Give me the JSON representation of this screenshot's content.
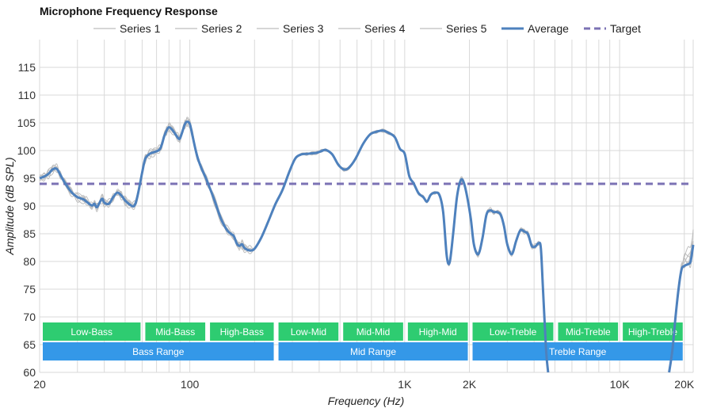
{
  "chart_data": {
    "type": "line",
    "title": "Microphone Frequency Response",
    "xlabel": "Frequency (Hz)",
    "ylabel": "Amplitude (dB SPL)",
    "x_scale": "log",
    "xlim": [
      20,
      22000
    ],
    "ylim": [
      60,
      120
    ],
    "y_ticks": [
      60,
      65,
      70,
      75,
      80,
      85,
      90,
      95,
      100,
      105,
      110,
      115
    ],
    "x_tick_labels": [
      {
        "value": 20,
        "label": "20"
      },
      {
        "value": 100,
        "label": "100"
      },
      {
        "value": 1000,
        "label": "1K"
      },
      {
        "value": 2000,
        "label": "2K"
      },
      {
        "value": 10000,
        "label": "10K"
      },
      {
        "value": 20000,
        "label": "20K"
      }
    ],
    "x_minor_grid": [
      30,
      40,
      50,
      60,
      70,
      80,
      90,
      200,
      300,
      400,
      500,
      600,
      700,
      800,
      900,
      3000,
      4000,
      5000,
      6000,
      7000,
      8000,
      9000
    ],
    "legend": [
      {
        "name": "Series 1",
        "color": "#c8c8c8",
        "style": "solid"
      },
      {
        "name": "Series 2",
        "color": "#c8c8c8",
        "style": "solid"
      },
      {
        "name": "Series 3",
        "color": "#c8c8c8",
        "style": "solid"
      },
      {
        "name": "Series 4",
        "color": "#c8c8c8",
        "style": "solid"
      },
      {
        "name": "Series 5",
        "color": "#c8c8c8",
        "style": "solid"
      },
      {
        "name": "Average",
        "color": "#4e81bd",
        "style": "solid"
      },
      {
        "name": "Target",
        "color": "#7b72b4",
        "style": "dashed"
      }
    ],
    "target": {
      "name": "Target",
      "value": 94
    },
    "average": {
      "name": "Average",
      "points": [
        [
          20,
          95
        ],
        [
          21,
          95.3
        ],
        [
          22,
          95.8
        ],
        [
          23,
          96.6
        ],
        [
          24,
          96.7
        ],
        [
          25,
          95.6
        ],
        [
          26,
          94.4
        ],
        [
          28,
          92.6
        ],
        [
          30,
          91.6
        ],
        [
          32,
          91.2
        ],
        [
          33,
          90.8
        ],
        [
          35,
          90.1
        ],
        [
          36,
          90.4
        ],
        [
          37,
          89.8
        ],
        [
          39,
          91.3
        ],
        [
          40,
          90.6
        ],
        [
          42,
          90.4
        ],
        [
          44,
          91.6
        ],
        [
          46,
          92.4
        ],
        [
          48,
          91.9
        ],
        [
          50,
          91.0
        ],
        [
          52,
          90.4
        ],
        [
          55,
          90.0
        ],
        [
          57,
          91.7
        ],
        [
          60,
          96.0
        ],
        [
          62,
          98.5
        ],
        [
          65,
          99.4
        ],
        [
          68,
          99.7
        ],
        [
          72,
          100.1
        ],
        [
          74,
          101.0
        ],
        [
          76,
          102.6
        ],
        [
          78,
          103.6
        ],
        [
          80,
          104.2
        ],
        [
          83,
          103.7
        ],
        [
          88,
          102.3
        ],
        [
          90,
          102.2
        ],
        [
          93,
          103.8
        ],
        [
          95,
          104.8
        ],
        [
          97,
          105.2
        ],
        [
          100,
          104.8
        ],
        [
          103,
          102.6
        ],
        [
          108,
          99.1
        ],
        [
          113,
          96.9
        ],
        [
          120,
          94.6
        ],
        [
          130,
          91.1
        ],
        [
          140,
          87.6
        ],
        [
          150,
          85.5
        ],
        [
          160,
          84.6
        ],
        [
          165,
          83.3
        ],
        [
          170,
          82.8
        ],
        [
          175,
          83.1
        ],
        [
          180,
          82.4
        ],
        [
          190,
          82.0
        ],
        [
          200,
          82.3
        ],
        [
          215,
          84.3
        ],
        [
          230,
          86.9
        ],
        [
          250,
          90.3
        ],
        [
          270,
          92.9
        ],
        [
          290,
          96.1
        ],
        [
          310,
          98.6
        ],
        [
          330,
          99.3
        ],
        [
          350,
          99.4
        ],
        [
          370,
          99.5
        ],
        [
          390,
          99.6
        ],
        [
          410,
          99.9
        ],
        [
          430,
          100.1
        ],
        [
          460,
          99.3
        ],
        [
          490,
          97.5
        ],
        [
          520,
          96.6
        ],
        [
          550,
          96.9
        ],
        [
          590,
          98.5
        ],
        [
          640,
          101.2
        ],
        [
          690,
          102.9
        ],
        [
          740,
          103.4
        ],
        [
          790,
          103.6
        ],
        [
          840,
          103.2
        ],
        [
          900,
          102.4
        ],
        [
          950,
          100.3
        ],
        [
          1000,
          99.4
        ],
        [
          1050,
          95.4
        ],
        [
          1100,
          94.1
        ],
        [
          1160,
          92.3
        ],
        [
          1220,
          91.6
        ],
        [
          1270,
          90.8
        ],
        [
          1320,
          92.0
        ],
        [
          1380,
          92.4
        ],
        [
          1450,
          92.0
        ],
        [
          1510,
          88.9
        ],
        [
          1570,
          80.9
        ],
        [
          1620,
          79.9
        ],
        [
          1680,
          85.0
        ],
        [
          1750,
          91.6
        ],
        [
          1820,
          94.6
        ],
        [
          1880,
          94.3
        ],
        [
          1950,
          91.8
        ],
        [
          2030,
          87.7
        ],
        [
          2100,
          83.0
        ],
        [
          2200,
          81.3
        ],
        [
          2300,
          84.2
        ],
        [
          2400,
          88.4
        ],
        [
          2500,
          89.2
        ],
        [
          2600,
          88.9
        ],
        [
          2700,
          88.9
        ],
        [
          2800,
          88.4
        ],
        [
          2900,
          86.3
        ],
        [
          3000,
          83.1
        ],
        [
          3150,
          81.3
        ],
        [
          3300,
          83.7
        ],
        [
          3450,
          85.6
        ],
        [
          3600,
          85.4
        ],
        [
          3750,
          84.9
        ],
        [
          3900,
          82.8
        ],
        [
          4050,
          82.7
        ],
        [
          4200,
          83.3
        ],
        [
          4300,
          82.4
        ],
        [
          4400,
          75.0
        ],
        [
          4550,
          64.0
        ],
        [
          4650,
          60.0
        ]
      ]
    },
    "average_tail": {
      "points": [
        [
          17000,
          60.0
        ],
        [
          17600,
          64.0
        ],
        [
          18200,
          70.0
        ],
        [
          18800,
          75.0
        ],
        [
          19400,
          78.5
        ],
        [
          20000,
          79.2
        ],
        [
          20800,
          79.5
        ],
        [
          21400,
          80.0
        ],
        [
          22000,
          83.0
        ]
      ]
    },
    "series": [
      {
        "name": "Series 1",
        "offsets": [
          0.4,
          -0.8,
          0.6,
          -0.4,
          0.9,
          -0.3
        ]
      },
      {
        "name": "Series 2",
        "offsets": [
          -0.5,
          0.7,
          -0.9,
          0.5,
          -0.2,
          0.6
        ]
      },
      {
        "name": "Series 3",
        "offsets": [
          0.3,
          0.5,
          -0.4,
          -0.8,
          0.4,
          -0.5
        ]
      },
      {
        "name": "Series 4",
        "offsets": [
          -0.3,
          -0.4,
          0.8,
          0.3,
          -0.6,
          0.2
        ]
      },
      {
        "name": "Series 5",
        "offsets": [
          0.6,
          0.2,
          -0.2,
          0.7,
          0.2,
          -0.7
        ]
      }
    ],
    "bands": [
      {
        "label": "Low-Bass",
        "from": 20,
        "to": 60,
        "row": 1
      },
      {
        "label": "Mid-Bass",
        "from": 60,
        "to": 120,
        "row": 1
      },
      {
        "label": "High-Bass",
        "from": 120,
        "to": 250,
        "row": 1
      },
      {
        "label": "Low-Mid",
        "from": 250,
        "to": 500,
        "row": 1
      },
      {
        "label": "Mid-Mid",
        "from": 500,
        "to": 1000,
        "row": 1
      },
      {
        "label": "High-Mid",
        "from": 1000,
        "to": 2000,
        "row": 1
      },
      {
        "label": "Low-Treble",
        "from": 2000,
        "to": 5000,
        "row": 1
      },
      {
        "label": "Mid-Treble",
        "from": 5000,
        "to": 10000,
        "row": 1
      },
      {
        "label": "High-Treble",
        "from": 10000,
        "to": 20000,
        "row": 1
      },
      {
        "label": "Bass Range",
        "from": 20,
        "to": 250,
        "row": 2
      },
      {
        "label": "Mid Range",
        "from": 250,
        "to": 2000,
        "row": 2
      },
      {
        "label": "Treble Range",
        "from": 2000,
        "to": 20000,
        "row": 2
      }
    ],
    "colors": {
      "average": "#4e81bd",
      "target": "#7b72b4",
      "series": "#bdbdbd",
      "band_row1": "#2ecc71",
      "band_row2": "#3498e8",
      "grid": "#d9d9d9"
    }
  }
}
